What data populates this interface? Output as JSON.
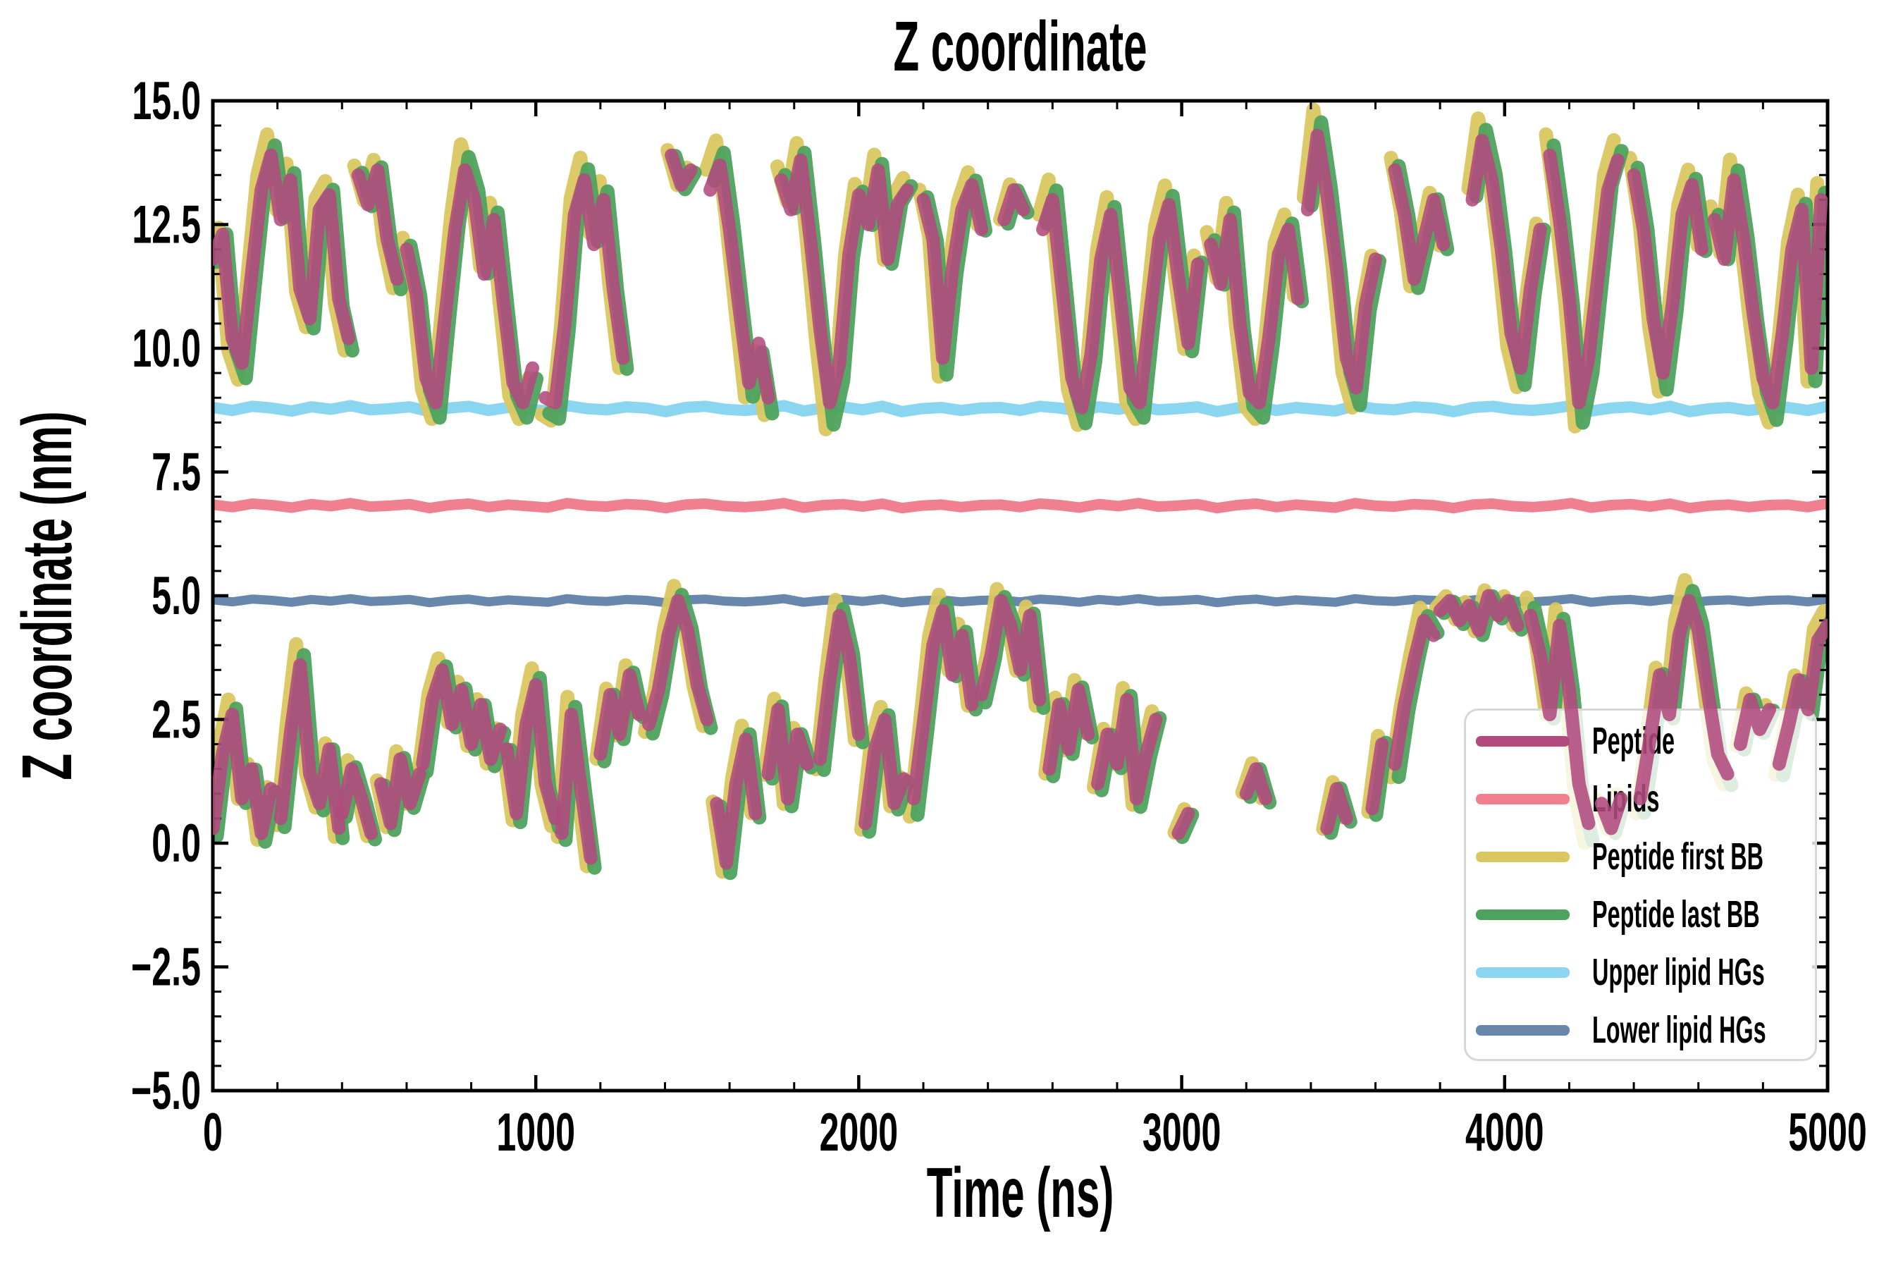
{
  "figure": {
    "title": "Z coordinate",
    "xlabel": "Time (ns)",
    "ylabel": "Z coordinate (nm)"
  },
  "axes": {
    "xlim": [
      0,
      5000
    ],
    "ylim": [
      -5,
      15
    ],
    "x_major_ticks": [
      0,
      1000,
      2000,
      3000,
      4000,
      5000
    ],
    "x_tick_labels": [
      "0",
      "1000",
      "2000",
      "3000",
      "4000",
      "5000"
    ],
    "x_minor_step": 200,
    "y_major_ticks": [
      -5,
      -2.5,
      0,
      2.5,
      5,
      7.5,
      10,
      12.5,
      15
    ],
    "y_tick_labels": [
      "−5.0",
      "−2.5",
      "0.0",
      "2.5",
      "5.0",
      "7.5",
      "10.0",
      "12.5",
      "15.0"
    ],
    "y_minor_step": 0.5,
    "spine_color": "#000000"
  },
  "legend": {
    "items": [
      {
        "label": "Peptide",
        "color": "#b34a7e"
      },
      {
        "label": "Lipids",
        "color": "#f0808f"
      },
      {
        "label": "Peptide first BB",
        "color": "#d9c75f"
      },
      {
        "label": "Peptide last BB",
        "color": "#4ea25e"
      },
      {
        "label": "Upper lipid HGs",
        "color": "#8ad5f0"
      },
      {
        "label": "Lower lipid HGs",
        "color": "#6787ad"
      }
    ]
  },
  "chart_data": {
    "type": "line",
    "title": "Z coordinate",
    "xlabel": "Time (ns)",
    "ylabel": "Z coordinate (nm)",
    "xlim": [
      0,
      5000
    ],
    "ylim": [
      -5,
      15
    ],
    "legend_position": "lower right",
    "grid": false,
    "flat_wobble": [
      0.02,
      -0.03,
      0.04,
      0.01,
      -0.04,
      0.03,
      -0.01,
      0.05,
      -0.02,
      0.0,
      0.03,
      -0.05,
      0.01,
      0.04,
      -0.03,
      0.02,
      -0.01,
      -0.04,
      0.05,
      0.0,
      -0.02,
      0.03,
      0.01,
      -0.05,
      0.02,
      0.04,
      -0.01,
      -0.03,
      0.0,
      0.05,
      -0.04,
      0.01,
      0.03,
      -0.02,
      0.04,
      -0.05,
      0.0,
      0.02,
      -0.03,
      0.01
    ],
    "series": [
      {
        "name": "Upper lipid HGs",
        "style": "flat",
        "color": "#8ad5f0",
        "value": 8.78,
        "lw": 16,
        "wobble_scale": 1.2
      },
      {
        "name": "Lipids",
        "style": "flat",
        "color": "#f0808f",
        "value": 6.82,
        "lw": 15,
        "wobble_scale": 1.0
      },
      {
        "name": "Lower lipid HGs",
        "style": "flat",
        "color": "#6787ad",
        "value": 4.9,
        "lw": 13,
        "wobble_scale": 0.8
      },
      {
        "name": "Peptide first BB",
        "style": "shadow",
        "of": "Peptide",
        "color": "#d9c75f",
        "amplify": 1.18,
        "tshift": -12,
        "dz": 0.05,
        "lw": 20,
        "opacity": 0.95
      },
      {
        "name": "Peptide last BB",
        "style": "shadow",
        "of": "Peptide",
        "color": "#4ea25e",
        "amplify": 1.12,
        "tshift": 12,
        "dz": -0.05,
        "lw": 20,
        "opacity": 0.95
      },
      {
        "name": "Peptide",
        "style": "segments",
        "color": "#b34a7e",
        "lw": 19,
        "opacity": 0.88,
        "dt": 30,
        "segments": [
          {
            "t0": 0,
            "z": [
              11.8,
              12.3,
              10.2,
              9.7,
              11.5,
              13.2,
              13.9,
              12.6,
              13.4,
              11.2,
              10.6,
              12.8,
              13.1,
              11.0,
              10.2
            ]
          },
          {
            "t0": 450,
            "z": [
              13.5,
              12.9,
              13.6,
              12.2,
              11.4
            ]
          },
          {
            "t0": 600,
            "z": [
              12.0,
              11.1,
              9.4,
              8.9,
              10.7,
              12.4,
              13.6,
              13.0,
              11.5,
              12.6,
              10.9,
              9.3,
              8.9,
              9.6
            ]
          },
          {
            "t0": 1030,
            "z": [
              9.0,
              8.9,
              10.5,
              12.7,
              13.4,
              12.1,
              13.0,
              11.2,
              9.8
            ]
          },
          {
            "t0": 1420,
            "z": [
              13.9,
              13.3,
              13.6
            ]
          },
          {
            "t0": 1540,
            "z": [
              13.2,
              13.7,
              12.4,
              10.8,
              9.3,
              10.1,
              9.0
            ]
          },
          {
            "t0": 1760,
            "z": [
              13.4,
              12.8,
              13.8,
              12.2,
              10.4,
              8.9,
              9.7,
              11.9,
              13.1,
              12.5,
              13.6,
              11.8,
              12.9,
              13.2
            ]
          },
          {
            "t0": 2200,
            "z": [
              13.0,
              12.2,
              9.8,
              11.6,
              12.8,
              13.3,
              12.4
            ]
          },
          {
            "t0": 2450,
            "z": [
              12.6,
              13.2,
              12.8
            ]
          },
          {
            "t0": 2570,
            "z": [
              12.4,
              13.0,
              11.2,
              9.4,
              8.8,
              9.9,
              11.8,
              12.7,
              11.0,
              9.2,
              8.9,
              10.6,
              12.2,
              12.9,
              11.4,
              10.1,
              11.7
            ]
          },
          {
            "t0": 3090,
            "z": [
              12.1,
              11.3,
              12.6,
              10.5,
              9.1,
              8.9,
              10.2,
              11.9,
              12.4,
              11.0
            ]
          },
          {
            "t0": 3390,
            "z": [
              12.8,
              14.3,
              13.1,
              11.6,
              9.8,
              9.2,
              10.9,
              11.8
            ]
          },
          {
            "t0": 3660,
            "z": [
              13.6,
              12.7,
              11.4,
              12.2,
              13.0,
              12.1
            ]
          },
          {
            "t0": 3900,
            "z": [
              13.0,
              14.2,
              13.4,
              12.0,
              10.3,
              9.6,
              11.2,
              12.4
            ]
          },
          {
            "t0": 4140,
            "z": [
              13.9,
              12.6,
              11.0,
              8.9,
              9.8,
              11.5,
              13.2,
              13.8
            ]
          },
          {
            "t0": 4400,
            "z": [
              13.5,
              12.4,
              10.6,
              9.5,
              10.9,
              12.7,
              13.3,
              12.0
            ]
          },
          {
            "t0": 4650,
            "z": [
              12.6,
              11.8,
              13.4,
              12.2,
              10.7,
              9.4,
              8.9,
              10.3,
              12.0,
              12.8,
              9.6,
              13.0
            ]
          },
          {
            "t0": 0,
            "z": [
              0.3,
              1.8,
              2.6,
              0.9,
              1.5,
              0.2,
              1.1
            ]
          },
          {
            "t0": 210,
            "z": [
              0.5,
              2.2,
              3.6,
              1.4,
              0.8,
              1.9,
              0.3
            ]
          },
          {
            "t0": 400,
            "z": [
              0.6,
              1.5,
              0.9,
              0.2
            ]
          },
          {
            "t0": 520,
            "z": [
              1.2,
              0.4,
              1.7,
              0.8,
              1.4
            ]
          },
          {
            "t0": 650,
            "z": [
              1.6,
              2.9,
              3.5,
              2.4,
              3.1,
              2.0,
              2.8,
              1.7,
              2.3
            ]
          },
          {
            "t0": 910,
            "z": [
              1.9,
              0.6,
              2.4,
              3.2,
              1.2,
              0.5
            ]
          },
          {
            "t0": 1080,
            "z": [
              0.2,
              2.6,
              1.1,
              -0.3
            ]
          },
          {
            "t0": 1200,
            "z": [
              1.8,
              3.0,
              2.2,
              3.4,
              2.6
            ]
          },
          {
            "t0": 1350,
            "z": [
              2.4,
              3.1,
              4.2,
              4.9,
              4.3,
              3.2,
              2.5
            ]
          },
          {
            "t0": 1560,
            "z": [
              0.8,
              -0.4,
              1.2,
              2.1,
              0.6
            ]
          },
          {
            "t0": 1720,
            "z": [
              1.4,
              2.7,
              0.9,
              2.2,
              1.6
            ]
          },
          {
            "t0": 1880,
            "z": [
              1.7,
              3.3,
              4.6,
              3.8,
              2.2
            ]
          },
          {
            "t0": 2020,
            "z": [
              0.4,
              1.9,
              2.5,
              0.8,
              1.3
            ]
          },
          {
            "t0": 2170,
            "z": [
              0.9,
              2.4,
              4.0,
              4.7,
              3.4,
              4.2,
              2.8
            ]
          },
          {
            "t0": 2380,
            "z": [
              3.0,
              3.8,
              4.9,
              4.4,
              3.5,
              4.6,
              2.9
            ]
          },
          {
            "t0": 2590,
            "z": [
              1.5,
              2.8,
              1.9,
              3.1,
              2.2
            ]
          },
          {
            "t0": 2740,
            "z": [
              1.2,
              2.2,
              1.6,
              2.9,
              0.9,
              1.8,
              2.5
            ]
          },
          {
            "t0": 2990,
            "z": [
              0.2,
              0.6
            ]
          },
          {
            "t0": 3200,
            "z": [
              1.0,
              1.5,
              0.9
            ]
          },
          {
            "t0": 3450,
            "z": [
              0.3,
              1.1,
              0.5
            ]
          },
          {
            "t0": 3590,
            "z": [
              0.7,
              2.0
            ]
          },
          {
            "t0": 3660,
            "z": [
              1.6,
              2.8,
              3.7,
              4.5,
              4.2
            ]
          },
          {
            "t0": 3800,
            "z": [
              4.7,
              4.9,
              4.5,
              4.8,
              4.3,
              5.0,
              4.6,
              4.9,
              4.4
            ]
          },
          {
            "t0": 4080,
            "z": [
              4.6,
              3.8,
              2.6,
              4.4,
              3.1,
              1.2,
              0.4
            ]
          },
          {
            "t0": 4300,
            "z": [
              0.8,
              0.3,
              0.9
            ]
          },
          {
            "t0": 4420,
            "z": [
              0.9,
              2.1,
              3.4,
              2.6,
              4.2,
              4.9,
              4.3,
              3.0,
              1.8,
              1.4
            ]
          },
          {
            "t0": 4730,
            "z": [
              2.0,
              2.9,
              2.3,
              2.7
            ]
          },
          {
            "t0": 4850,
            "z": [
              1.6,
              2.4,
              3.3,
              2.7,
              4.1,
              4.4
            ]
          }
        ]
      }
    ]
  }
}
